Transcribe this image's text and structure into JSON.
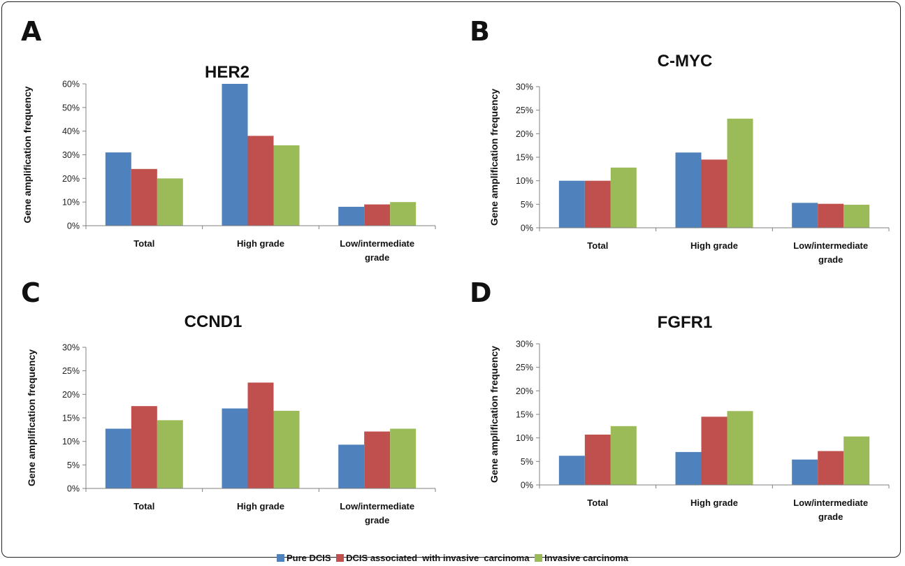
{
  "colors": {
    "series": [
      "#4F81BD",
      "#C0504D",
      "#9BBB59"
    ],
    "axis": "#808080"
  },
  "legend": [
    "Pure DCIS",
    "DCIS associated  with invasive  carcinoma",
    "Invasive carcinoma"
  ],
  "chart_data": [
    {
      "panel_letter": "A",
      "type": "bar",
      "title": "HER2",
      "ylabel": "Gene amplification frequency",
      "ylim": [
        0,
        60
      ],
      "yticks": [
        "0%",
        "10%",
        "20%",
        "30%",
        "40%",
        "50%",
        "60%"
      ],
      "categories": [
        [
          "Total"
        ],
        [
          "High grade"
        ],
        [
          "Low/intermediate",
          "grade"
        ]
      ],
      "series": [
        {
          "name": "Pure DCIS",
          "values": [
            31,
            60,
            8
          ]
        },
        {
          "name": "DCIS associated  with invasive  carcinoma",
          "values": [
            24,
            38,
            9
          ]
        },
        {
          "name": "Invasive carcinoma",
          "values": [
            20,
            34,
            10
          ]
        }
      ]
    },
    {
      "panel_letter": "B",
      "type": "bar",
      "title": "C-MYC",
      "ylabel": "Gene amplification frequency",
      "ylim": [
        0,
        30
      ],
      "yticks": [
        "0%",
        "5%",
        "10%",
        "15%",
        "20%",
        "25%",
        "30%"
      ],
      "categories": [
        [
          "Total"
        ],
        [
          "High grade"
        ],
        [
          "Low/intermediate",
          "grade"
        ]
      ],
      "series": [
        {
          "name": "Pure DCIS",
          "values": [
            10,
            16,
            5.3
          ]
        },
        {
          "name": "DCIS associated  with invasive  carcinoma",
          "values": [
            10,
            14.5,
            5.1
          ]
        },
        {
          "name": "Invasive carcinoma",
          "values": [
            12.8,
            23.2,
            4.9
          ]
        }
      ]
    },
    {
      "panel_letter": "C",
      "type": "bar",
      "title": "CCND1",
      "ylabel": "Gene amplification frequency",
      "ylim": [
        0,
        30
      ],
      "yticks": [
        "0%",
        "5%",
        "10%",
        "15%",
        "20%",
        "25%",
        "30%"
      ],
      "categories": [
        [
          "Total"
        ],
        [
          "High grade"
        ],
        [
          "Low/intermediate",
          "grade"
        ]
      ],
      "series": [
        {
          "name": "Pure DCIS",
          "values": [
            12.7,
            17,
            9.3
          ]
        },
        {
          "name": "DCIS associated  with invasive  carcinoma",
          "values": [
            17.5,
            22.5,
            12.1
          ]
        },
        {
          "name": "Invasive carcinoma",
          "values": [
            14.5,
            16.5,
            12.7
          ]
        }
      ]
    },
    {
      "panel_letter": "D",
      "type": "bar",
      "title": "FGFR1",
      "ylabel": "Gene amplification frequency",
      "ylim": [
        0,
        30
      ],
      "yticks": [
        "0%",
        "5%",
        "10%",
        "15%",
        "20%",
        "25%",
        "30%"
      ],
      "categories": [
        [
          "Total"
        ],
        [
          "High grade"
        ],
        [
          "Low/intermediate",
          "grade"
        ]
      ],
      "series": [
        {
          "name": "Pure DCIS",
          "values": [
            6.2,
            7,
            5.4
          ]
        },
        {
          "name": "DCIS associated  with invasive  carcinoma",
          "values": [
            10.7,
            14.5,
            7.2
          ]
        },
        {
          "name": "Invasive carcinoma",
          "values": [
            12.5,
            15.7,
            10.3
          ]
        }
      ]
    }
  ]
}
